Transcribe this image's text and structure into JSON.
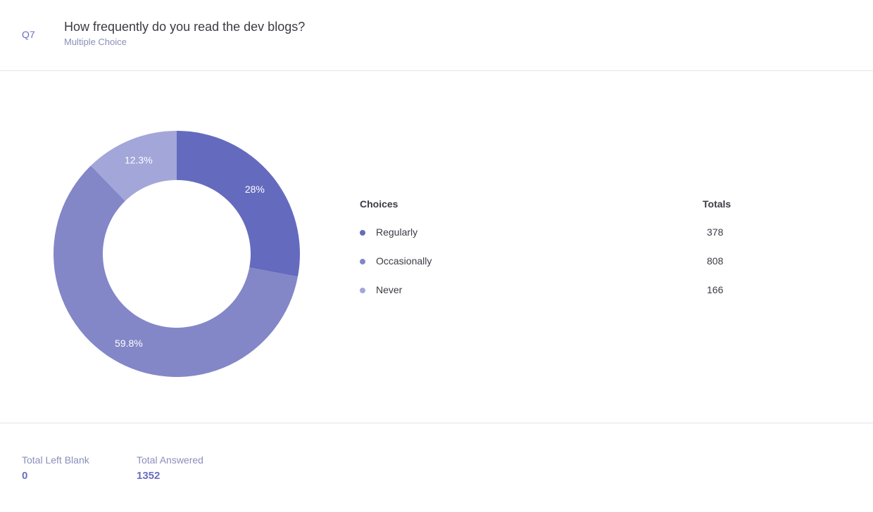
{
  "question": {
    "number": "Q7",
    "title": "How frequently do you read the dev blogs?",
    "type": "Multiple Choice"
  },
  "legend": {
    "choices_header": "Choices",
    "totals_header": "Totals"
  },
  "chart_data": {
    "type": "pie",
    "donut": true,
    "categories": [
      "Regularly",
      "Occasionally",
      "Never"
    ],
    "values": [
      378,
      808,
      166
    ],
    "percent_labels": [
      "28%",
      "59.8%",
      "12.3%"
    ],
    "colors": [
      "#646bbe",
      "#8387c8",
      "#a3a6d8"
    ],
    "start": "top",
    "direction": "clockwise"
  },
  "footer": {
    "blank_label": "Total Left Blank",
    "blank_value": "0",
    "answered_label": "Total Answered",
    "answered_value": "1352"
  }
}
